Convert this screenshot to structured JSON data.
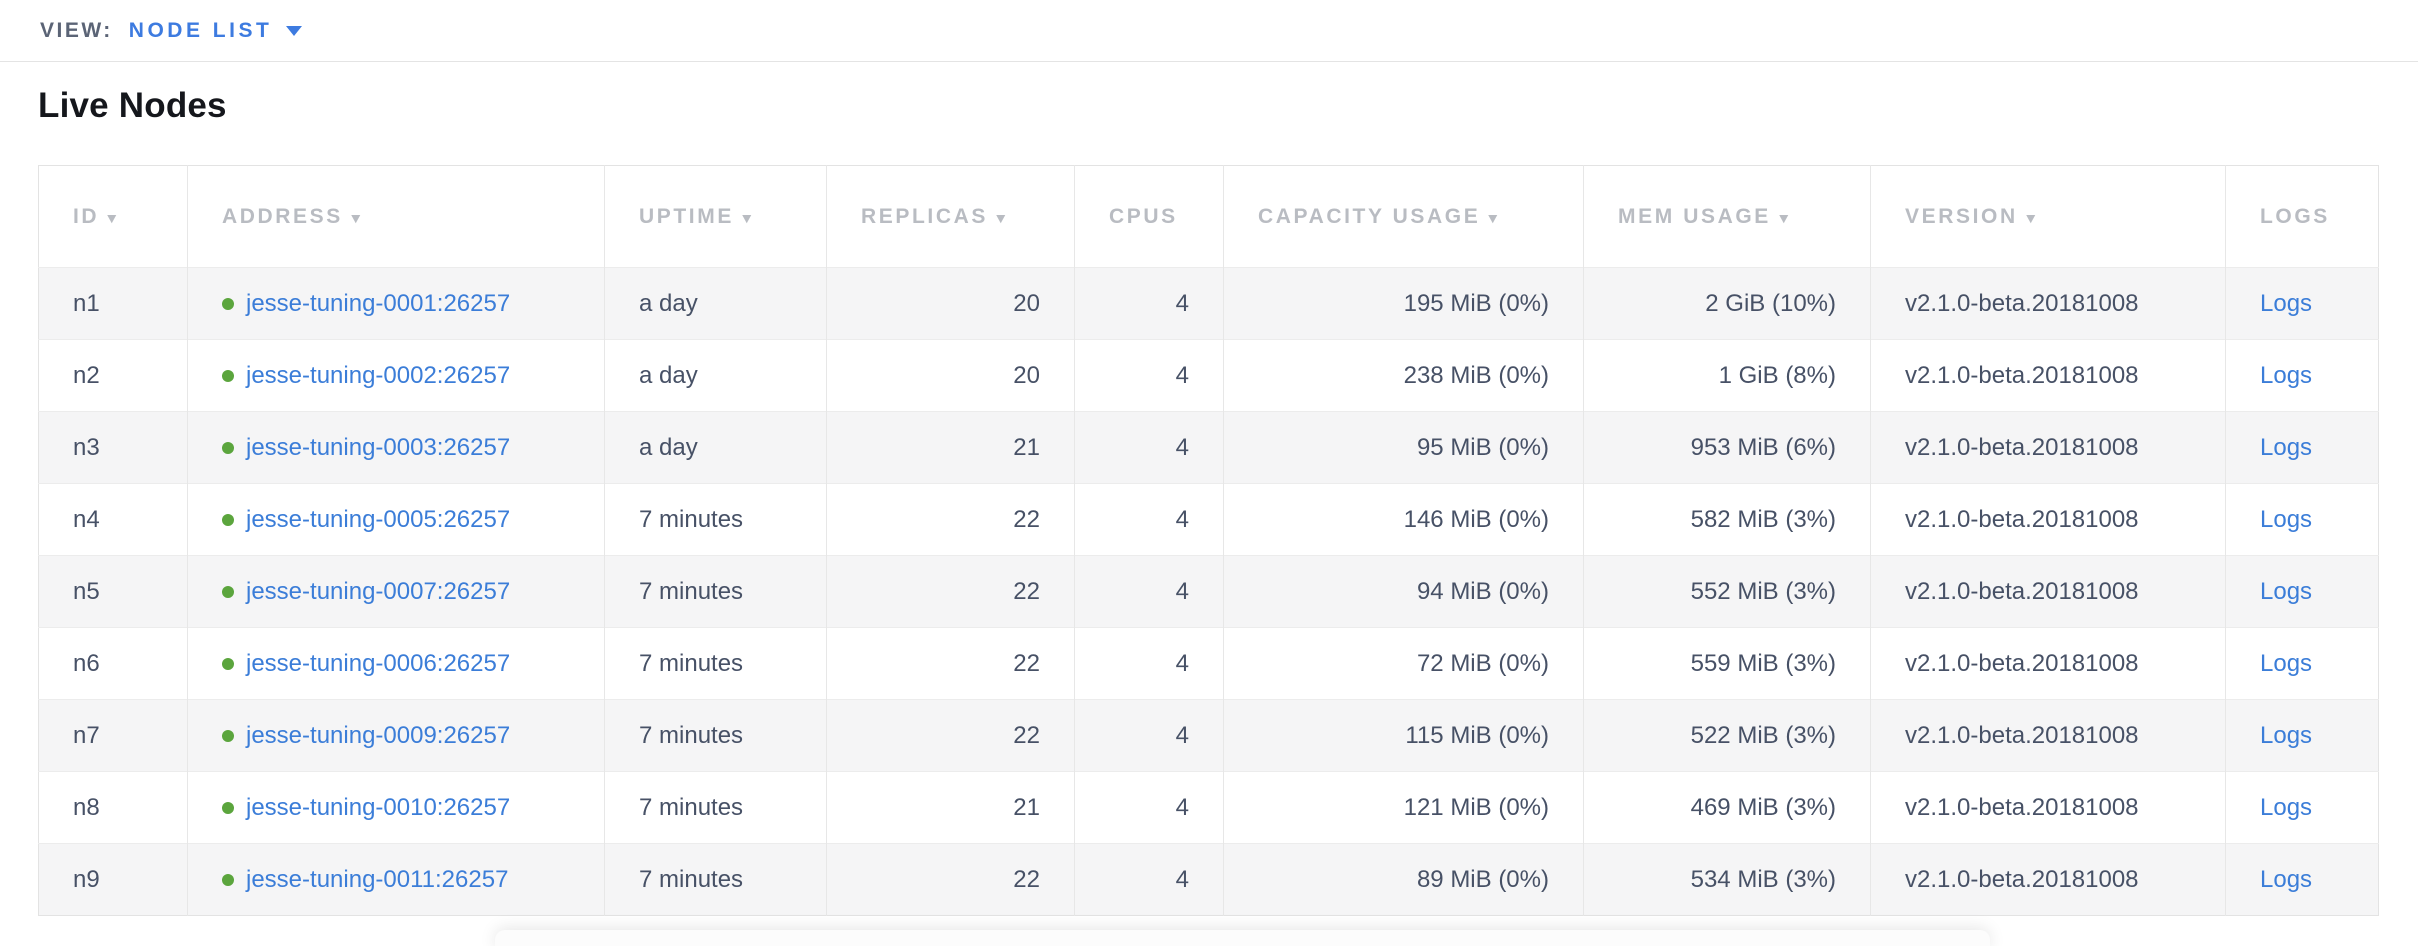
{
  "view_bar": {
    "label": "VIEW:",
    "selected": "NODE LIST"
  },
  "page": {
    "title": "Live Nodes"
  },
  "colors": {
    "link_blue": "#3b7dd8",
    "accent_blue": "#3d7be0",
    "node_live_green": "#5ba53d",
    "header_text": "#b9bcc2",
    "cell_text": "#475166",
    "row_alt_bg": "#f5f5f6"
  },
  "icons": {
    "view_dropdown": "chevron-down-icon",
    "sort": "sort-desc-triangle-icon",
    "node_status": "live-node-dot-icon"
  },
  "table": {
    "columns": [
      {
        "key": "id",
        "label": "ID",
        "sortable": true
      },
      {
        "key": "address",
        "label": "ADDRESS",
        "sortable": true
      },
      {
        "key": "uptime",
        "label": "UPTIME",
        "sortable": true
      },
      {
        "key": "replicas",
        "label": "REPLICAS",
        "sortable": true
      },
      {
        "key": "cpus",
        "label": "CPUS",
        "sortable": false
      },
      {
        "key": "capacity",
        "label": "CAPACITY USAGE",
        "sortable": true
      },
      {
        "key": "mem",
        "label": "MEM USAGE",
        "sortable": true
      },
      {
        "key": "version",
        "label": "VERSION",
        "sortable": true
      },
      {
        "key": "logs",
        "label": "LOGS",
        "sortable": false
      }
    ],
    "rows": [
      {
        "id": "n1",
        "address": "jesse-tuning-0001:26257",
        "uptime": "a day",
        "replicas": "20",
        "cpus": "4",
        "capacity": "195 MiB (0%)",
        "mem": "2 GiB (10%)",
        "version": "v2.1.0-beta.20181008",
        "logs": "Logs"
      },
      {
        "id": "n2",
        "address": "jesse-tuning-0002:26257",
        "uptime": "a day",
        "replicas": "20",
        "cpus": "4",
        "capacity": "238 MiB (0%)",
        "mem": "1 GiB (8%)",
        "version": "v2.1.0-beta.20181008",
        "logs": "Logs"
      },
      {
        "id": "n3",
        "address": "jesse-tuning-0003:26257",
        "uptime": "a day",
        "replicas": "21",
        "cpus": "4",
        "capacity": "95 MiB (0%)",
        "mem": "953 MiB (6%)",
        "version": "v2.1.0-beta.20181008",
        "logs": "Logs"
      },
      {
        "id": "n4",
        "address": "jesse-tuning-0005:26257",
        "uptime": "7 minutes",
        "replicas": "22",
        "cpus": "4",
        "capacity": "146 MiB (0%)",
        "mem": "582 MiB (3%)",
        "version": "v2.1.0-beta.20181008",
        "logs": "Logs"
      },
      {
        "id": "n5",
        "address": "jesse-tuning-0007:26257",
        "uptime": "7 minutes",
        "replicas": "22",
        "cpus": "4",
        "capacity": "94 MiB (0%)",
        "mem": "552 MiB (3%)",
        "version": "v2.1.0-beta.20181008",
        "logs": "Logs"
      },
      {
        "id": "n6",
        "address": "jesse-tuning-0006:26257",
        "uptime": "7 minutes",
        "replicas": "22",
        "cpus": "4",
        "capacity": "72 MiB (0%)",
        "mem": "559 MiB (3%)",
        "version": "v2.1.0-beta.20181008",
        "logs": "Logs"
      },
      {
        "id": "n7",
        "address": "jesse-tuning-0009:26257",
        "uptime": "7 minutes",
        "replicas": "22",
        "cpus": "4",
        "capacity": "115 MiB (0%)",
        "mem": "522 MiB (3%)",
        "version": "v2.1.0-beta.20181008",
        "logs": "Logs"
      },
      {
        "id": "n8",
        "address": "jesse-tuning-0010:26257",
        "uptime": "7 minutes",
        "replicas": "21",
        "cpus": "4",
        "capacity": "121 MiB (0%)",
        "mem": "469 MiB (3%)",
        "version": "v2.1.0-beta.20181008",
        "logs": "Logs"
      },
      {
        "id": "n9",
        "address": "jesse-tuning-0011:26257",
        "uptime": "7 minutes",
        "replicas": "22",
        "cpus": "4",
        "capacity": "89 MiB (0%)",
        "mem": "534 MiB (3%)",
        "version": "v2.1.0-beta.20181008",
        "logs": "Logs"
      }
    ]
  }
}
